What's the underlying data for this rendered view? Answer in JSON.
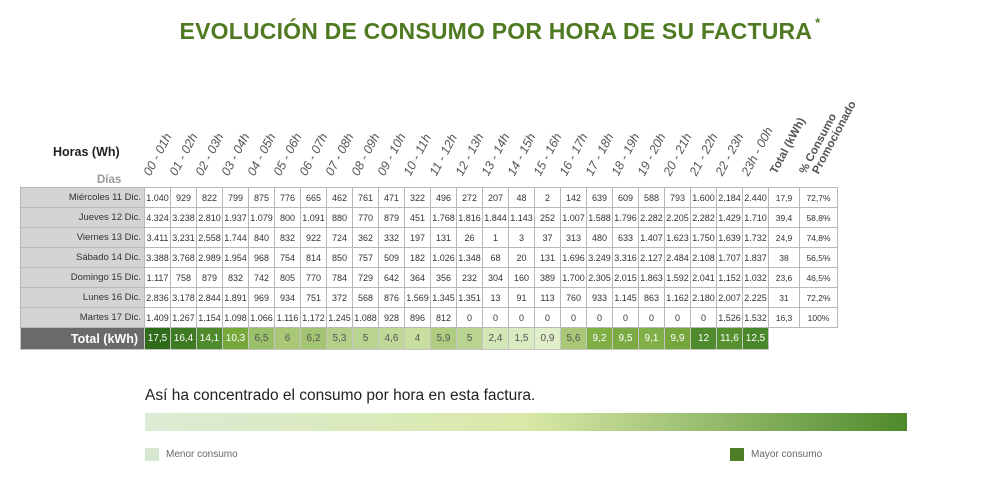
{
  "title": "EVOLUCIÓN DE CONSUMO POR HORA DE SU FACTURA",
  "title_mark": "*",
  "horas_label": "Horas (Wh)",
  "dias_label": "Días",
  "hours": [
    "00 - 01h",
    "01 - 02h",
    "02 - 03h",
    "03 - 04h",
    "04 - 05h",
    "05 - 06h",
    "06 - 07h",
    "07 - 08h",
    "08 - 09h",
    "09 - 10h",
    "10 - 11h",
    "11 - 12h",
    "12 - 13h",
    "13 - 14h",
    "14 - 15h",
    "15 - 16h",
    "16 - 17h",
    "17 - 18h",
    "18 - 19h",
    "19 - 20h",
    "20 - 21h",
    "21 - 22h",
    "22 - 23h",
    "23h - 00h"
  ],
  "total_col_label": "Total (kWh)",
  "pct_col_label_1": "% Consumo",
  "pct_col_label_2": "Promocionado",
  "rows": [
    {
      "day": "Miércoles 11 Dic.",
      "values": [
        "1.040",
        "929",
        "822",
        "799",
        "875",
        "776",
        "665",
        "462",
        "761",
        "471",
        "322",
        "496",
        "272",
        "207",
        "48",
        "2",
        "142",
        "639",
        "609",
        "588",
        "793",
        "1.600",
        "2.184",
        "2.440"
      ],
      "total": "17,9",
      "pct": "72,7%"
    },
    {
      "day": "Jueves 12 Dic.",
      "values": [
        "4.324",
        "3.238",
        "2.810",
        "1.937",
        "1.079",
        "800",
        "1.091",
        "880",
        "770",
        "879",
        "451",
        "1.768",
        "1.816",
        "1.844",
        "1.143",
        "252",
        "1.007",
        "1.588",
        "1.796",
        "2.282",
        "2.205",
        "2.282",
        "1.429",
        "1.710"
      ],
      "total": "39,4",
      "pct": "58,8%"
    },
    {
      "day": "Viernes 13 Dic.",
      "values": [
        "3.411",
        "3.231",
        "2.558",
        "1.744",
        "840",
        "832",
        "922",
        "724",
        "362",
        "332",
        "197",
        "131",
        "26",
        "1",
        "3",
        "37",
        "313",
        "480",
        "633",
        "1.407",
        "1.623",
        "1.750",
        "1.639",
        "1.732"
      ],
      "total": "24,9",
      "pct": "74,8%"
    },
    {
      "day": "Sábado 14 Dic.",
      "values": [
        "3.388",
        "3.768",
        "2.989",
        "1.954",
        "968",
        "754",
        "814",
        "850",
        "757",
        "509",
        "182",
        "1.026",
        "1.348",
        "68",
        "20",
        "131",
        "1.696",
        "3.249",
        "3.316",
        "2.127",
        "2.484",
        "2.108",
        "1.707",
        "1.837"
      ],
      "total": "38",
      "pct": "56,5%"
    },
    {
      "day": "Domingo 15 Dic.",
      "values": [
        "1.117",
        "758",
        "879",
        "832",
        "742",
        "805",
        "770",
        "784",
        "729",
        "642",
        "364",
        "356",
        "232",
        "304",
        "160",
        "389",
        "1.700",
        "2.305",
        "2.015",
        "1.863",
        "1.592",
        "2.041",
        "1.152",
        "1.032"
      ],
      "total": "23,6",
      "pct": "46,5%"
    },
    {
      "day": "Lunes 16 Dic.",
      "values": [
        "2.836",
        "3.178",
        "2.844",
        "1.891",
        "969",
        "934",
        "751",
        "372",
        "568",
        "876",
        "1.569",
        "1.345",
        "1.351",
        "13",
        "91",
        "113",
        "760",
        "933",
        "1.145",
        "863",
        "1.162",
        "2.180",
        "2.007",
        "2.225"
      ],
      "total": "31",
      "pct": "72,2%"
    },
    {
      "day": "Martes 17 Dic.",
      "values": [
        "1.409",
        "1.267",
        "1.154",
        "1.098",
        "1.066",
        "1.116",
        "1.172",
        "1.245",
        "1.088",
        "928",
        "896",
        "812",
        "0",
        "0",
        "0",
        "0",
        "0",
        "0",
        "0",
        "0",
        "0",
        "0",
        "1.526",
        "1.532"
      ],
      "total": "16,3",
      "pct": "100%"
    }
  ],
  "total_row_label": "Total (kWh)",
  "total_row": {
    "values": [
      "17,5",
      "16,4",
      "14,1",
      "10,3",
      "6,5",
      "6",
      "6,2",
      "5,3",
      "5",
      "4,6",
      "4",
      "5,9",
      "5",
      "2,4",
      "1,5",
      "0,9",
      "5,6",
      "9,2",
      "9,5",
      "9,1",
      "9,9",
      "12",
      "11,6",
      "12,5"
    ],
    "colors": [
      "#2f6b1b",
      "#3d7a22",
      "#4f8a2c",
      "#76a83a",
      "#9bc06a",
      "#a8c877",
      "#a3c472",
      "#b3d08a",
      "#b8d490",
      "#bfd898",
      "#c8df9f",
      "#aecd80",
      "#b8d490",
      "#d4e7b6",
      "#dbebc1",
      "#e1eeca",
      "#a8c877",
      "#7fae45",
      "#7aaa41",
      "#80ae47",
      "#74a63b",
      "#4f8a2c",
      "#56902e",
      "#4a862a"
    ],
    "text_colors": [
      "#ffffff",
      "#ffffff",
      "#ffffff",
      "#ffffff",
      "#555555",
      "#555555",
      "#555555",
      "#555555",
      "#555555",
      "#555555",
      "#555555",
      "#555555",
      "#555555",
      "#555555",
      "#555555",
      "#555555",
      "#555555",
      "#ffffff",
      "#ffffff",
      "#ffffff",
      "#ffffff",
      "#ffffff",
      "#ffffff",
      "#ffffff"
    ]
  },
  "concentrado_text": "Así ha concentrado el consumo por hora en esta factura.",
  "legend_low": "Menor consumo",
  "legend_high": "Mayor consumo",
  "legend_low_color": "#d6e8cf",
  "legend_high_color": "#4e7e26"
}
